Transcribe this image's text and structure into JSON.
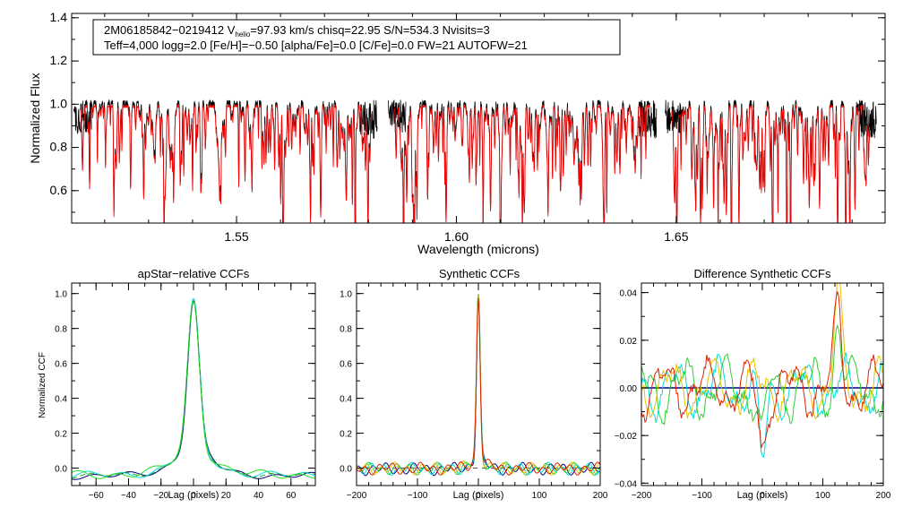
{
  "chart_data": [
    {
      "type": "line",
      "id": "spectrum",
      "title": "",
      "xlabel": "Wavelength (microns)",
      "ylabel": "Normalized Flux",
      "xlim": [
        1.5125,
        1.6975
      ],
      "ylim": [
        0.45,
        1.42
      ],
      "xticks": [
        1.55,
        1.6,
        1.65
      ],
      "xtick_labels": [
        "1.55",
        "1.60",
        "1.65"
      ],
      "yticks": [
        0.6,
        0.8,
        1.0,
        1.2,
        1.4
      ],
      "ytick_labels": [
        "0.6",
        "0.8",
        "1.0",
        "1.2",
        "1.4"
      ],
      "header_line1_a": "2M06185842−0219412  V",
      "header_line1_sub": "helio",
      "header_line1_b": "=97.93 km/s  chisq=22.95  S/N=534.3  Nvisits=3",
      "header_line2": "Teff=4,000 logg=2.0 [Fe/H]=−0.50 [alpha/Fe]=0.0 [C/Fe]=0.0 FW=21 AUTOFW=21",
      "chips": [
        [
          1.5145,
          1.5805
        ],
        [
          1.586,
          1.644
        ],
        [
          1.649,
          1.694
        ]
      ],
      "series": [
        {
          "name": "observed",
          "color": "#000000"
        },
        {
          "name": "model",
          "color": "#ff0000"
        }
      ],
      "strong_lines": [
        {
          "x": 1.5335,
          "depth": 0.42
        },
        {
          "x": 1.54,
          "depth": 0.4
        },
        {
          "x": 1.5505,
          "depth": 0.38
        },
        {
          "x": 1.56,
          "depth": 0.34
        },
        {
          "x": 1.577,
          "depth": 0.48
        },
        {
          "x": 1.577,
          "depth": 0.45
        },
        {
          "x": 1.588,
          "depth": 0.52
        },
        {
          "x": 1.5905,
          "depth": 0.42
        },
        {
          "x": 1.615,
          "depth": 0.36
        },
        {
          "x": 1.642,
          "depth": 0.34
        },
        {
          "x": 1.672,
          "depth": 0.4
        },
        {
          "x": 1.676,
          "depth": 0.52
        }
      ]
    },
    {
      "type": "line",
      "id": "ccf1",
      "title": "apStar−relative CCFs",
      "xlabel": "Lag (pixels)",
      "ylabel": "Normalized CCF",
      "xlim": [
        -75,
        75
      ],
      "ylim": [
        -0.1,
        1.06
      ],
      "xticks": [
        -60,
        -40,
        -20,
        0,
        20,
        40,
        60
      ],
      "xtick_labels": [
        "−60",
        "−40",
        "−20",
        "0",
        "20",
        "40",
        "60"
      ],
      "yticks": [
        0.0,
        0.2,
        0.4,
        0.6,
        0.8,
        1.0
      ],
      "ytick_labels": [
        "0.0",
        "0.2",
        "0.4",
        "0.6",
        "0.8",
        "1.0"
      ],
      "series": [
        {
          "name": "navy",
          "color": "#000080",
          "peak": 1.0,
          "width": 3.2,
          "wing": 0.35,
          "offset": -0.045,
          "wobble": 0.012,
          "phase": 0.0
        },
        {
          "name": "cyan",
          "color": "#00e0e0",
          "peak": 0.99,
          "width": 3.3,
          "wing": 0.34,
          "offset": -0.04,
          "wobble": 0.014,
          "phase": 1.1
        },
        {
          "name": "lime",
          "color": "#22dd22",
          "peak": 0.99,
          "width": 3.3,
          "wing": 0.34,
          "offset": -0.038,
          "wobble": 0.016,
          "phase": 2.3
        },
        {
          "name": "green-dashed",
          "color": "#2a9a2a",
          "peak": 0.99,
          "width": 3.25,
          "wing": 0.34,
          "offset": -0.042,
          "wobble": 0.01,
          "phase": 0.6,
          "dashed": true
        }
      ]
    },
    {
      "type": "line",
      "id": "ccf2",
      "title": "Synthetic CCFs",
      "xlabel": "Lag (pixels)",
      "ylabel": "",
      "xlim": [
        -200,
        200
      ],
      "ylim": [
        -0.1,
        1.06
      ],
      "xticks": [
        -200,
        -100,
        0,
        100,
        200
      ],
      "xtick_labels": [
        "−200",
        "−100",
        "0",
        "100",
        "200"
      ],
      "yticks": [
        0.0,
        0.2,
        0.4,
        0.6,
        0.8,
        1.0
      ],
      "ytick_labels": [
        "0.0",
        "0.2",
        "0.4",
        "0.6",
        "0.8",
        "1.0"
      ],
      "series": [
        {
          "name": "navy",
          "color": "#000080",
          "peak": 1.0,
          "width": 2.8,
          "wing": 0.12,
          "offset": -0.005,
          "wobble": 0.022,
          "phase": 0.0
        },
        {
          "name": "cyan",
          "color": "#00dddd",
          "peak": 0.99,
          "width": 2.9,
          "wing": 0.12,
          "offset": -0.004,
          "wobble": 0.022,
          "phase": 0.8
        },
        {
          "name": "lime",
          "color": "#33cc33",
          "peak": 0.99,
          "width": 2.9,
          "wing": 0.12,
          "offset": -0.004,
          "wobble": 0.022,
          "phase": 1.6
        },
        {
          "name": "yellow",
          "color": "#e6c200",
          "peak": 0.99,
          "width": 2.9,
          "wing": 0.12,
          "offset": -0.003,
          "wobble": 0.022,
          "phase": 2.4
        },
        {
          "name": "red",
          "color": "#dd2200",
          "peak": 0.99,
          "width": 2.9,
          "wing": 0.12,
          "offset": -0.003,
          "wobble": 0.022,
          "phase": 3.2
        }
      ],
      "baseline": 0.0
    },
    {
      "type": "line",
      "id": "ccf3",
      "title": "Difference Synthetic CCFs",
      "xlabel": "Lag (pixels)",
      "ylabel": "",
      "xlim": [
        -200,
        200
      ],
      "ylim": [
        -0.041,
        0.044
      ],
      "xticks": [
        -200,
        -100,
        0,
        100,
        200
      ],
      "xtick_labels": [
        "−200",
        "−100",
        "0",
        "100",
        "200"
      ],
      "yticks": [
        -0.04,
        -0.02,
        0.0,
        0.02,
        0.04
      ],
      "ytick_labels": [
        "−0.04",
        "−0.02",
        "0.00",
        "0.02",
        "0.04"
      ],
      "series": [
        {
          "name": "navy",
          "color": "#000080",
          "amp": 0.0,
          "phase": 0.0
        },
        {
          "name": "cyan",
          "color": "#00dddd",
          "amp": 0.012,
          "phase": 1.9,
          "dip": -0.034
        },
        {
          "name": "lime",
          "color": "#33cc33",
          "amp": 0.013,
          "phase": 0.7,
          "dip": -0.022,
          "bump": 0.028
        },
        {
          "name": "yellow",
          "color": "#e6c200",
          "amp": 0.012,
          "phase": 2.6,
          "bump": 0.038
        },
        {
          "name": "red",
          "color": "#dd2200",
          "amp": 0.012,
          "phase": 3.6,
          "bump": 0.03,
          "dip": -0.026
        }
      ]
    }
  ]
}
